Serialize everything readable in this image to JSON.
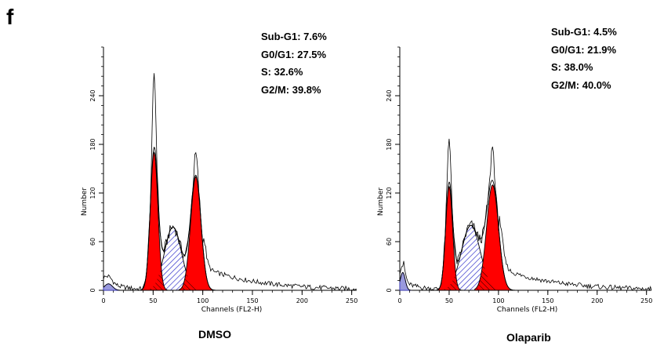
{
  "figure": {
    "panel_label": "f"
  },
  "chart_data": [
    {
      "type": "area",
      "caption": "DMSO",
      "xlabel": "Channels (FL2-H)",
      "ylabel": "Number",
      "xlim": [
        0,
        255
      ],
      "ylim": [
        0,
        300
      ],
      "xticks": [
        "0",
        "50",
        "100",
        "150",
        "200",
        "250"
      ],
      "yticks": [
        "0",
        "60",
        "120",
        "180",
        "240"
      ],
      "stats": [
        "Sub-G1: 7.6%",
        "G0/G1: 27.5%",
        "S: 32.6%",
        "G2/M: 39.8%"
      ],
      "colors": {
        "g1_peak": "#ff0000",
        "g2m_peak": "#ff0000",
        "s_phase": "#3333cc",
        "outline": "#000000"
      },
      "components": {
        "subg1": {
          "center": 5,
          "width": 4,
          "height": 8
        },
        "g1": {
          "center": 51,
          "width": 3.8,
          "height": 170
        },
        "s": {
          "center": 70,
          "width": 8.5,
          "height": 78
        },
        "g2m": {
          "center": 93,
          "width": 5.2,
          "height": 140
        }
      },
      "histogram_peaks": [
        {
          "x": 51,
          "y": 268
        },
        {
          "x": 93,
          "y": 168
        }
      ]
    },
    {
      "type": "area",
      "caption": "Olaparib",
      "xlabel": "Channels (FL2-H)",
      "ylabel": "Number",
      "xlim": [
        0,
        255
      ],
      "ylim": [
        0,
        300
      ],
      "xticks": [
        "0",
        "50",
        "100",
        "150",
        "200",
        "250"
      ],
      "yticks": [
        "0",
        "60",
        "120",
        "180",
        "240"
      ],
      "stats": [
        "Sub-G1: 4.5%",
        "G0/G1: 21.9%",
        "S: 38.0%",
        "G2/M: 40.0%"
      ],
      "colors": {
        "g1_peak": "#ff0000",
        "g2m_peak": "#ff0000",
        "s_phase": "#3333cc",
        "outline": "#000000"
      },
      "components": {
        "subg1": {
          "center": 3,
          "width": 2.5,
          "height": 22
        },
        "g1": {
          "center": 50,
          "width": 3.5,
          "height": 128
        },
        "s": {
          "center": 72,
          "width": 9.5,
          "height": 80
        },
        "g2m": {
          "center": 94,
          "width": 6.0,
          "height": 130
        }
      },
      "histogram_peaks": [
        {
          "x": 50,
          "y": 185
        },
        {
          "x": 94,
          "y": 178
        }
      ]
    }
  ]
}
